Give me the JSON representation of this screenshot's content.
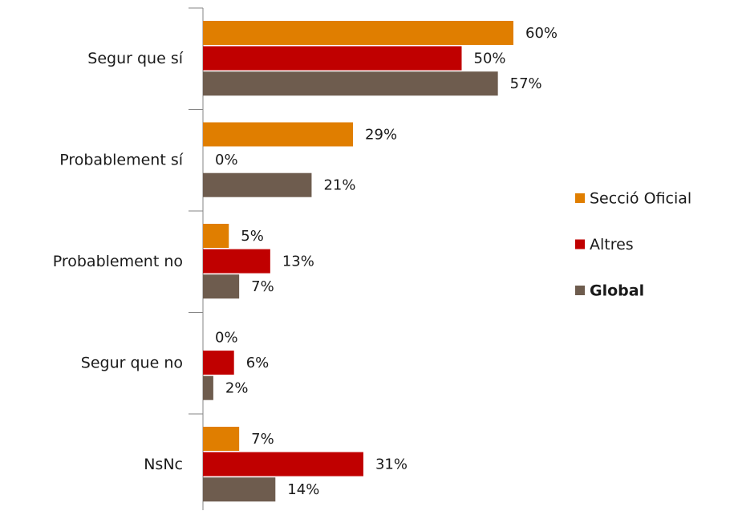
{
  "chart_data": {
    "type": "bar",
    "orientation": "horizontal",
    "categories": [
      "Segur que sí",
      "Probablement sí",
      "Probablement no",
      "Segur que no",
      "NsNc"
    ],
    "series": [
      {
        "name": "Secció Oficial",
        "color": "#e07e00",
        "values": [
          60,
          29,
          5,
          0,
          7
        ],
        "value_labels": [
          "60%",
          "29%",
          "5%",
          "0%",
          "7%"
        ]
      },
      {
        "name": "Altres",
        "color": "#c00000",
        "values": [
          50,
          0,
          13,
          6,
          31
        ],
        "value_labels": [
          "50%",
          "0%",
          "13%",
          "6%",
          "31%"
        ]
      },
      {
        "name": "Global",
        "color": "#6e5c4e",
        "values": [
          57,
          21,
          7,
          2,
          14
        ],
        "value_labels": [
          "57%",
          "21%",
          "7%",
          "2%",
          "14%"
        ]
      }
    ],
    "legend": "right"
  }
}
